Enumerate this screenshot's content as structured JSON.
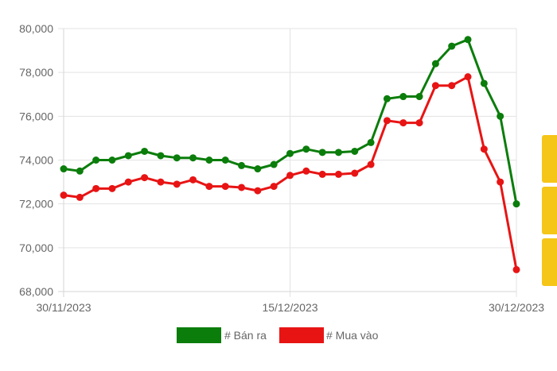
{
  "chart_data": {
    "type": "line",
    "x_tick_labels": [
      "30/11/2023",
      "15/12/2023",
      "30/12/2023"
    ],
    "y_tick_labels": [
      "68,000",
      "70,000",
      "72,000",
      "74,000",
      "76,000",
      "78,000",
      "80,000"
    ],
    "ylim": [
      68000,
      80000
    ],
    "grid": true,
    "legend_position": "bottom",
    "series": [
      {
        "name": "# Bán ra",
        "color": "#0b7d0b",
        "values": [
          73600,
          73500,
          74000,
          74000,
          74200,
          74400,
          74200,
          74100,
          74100,
          74000,
          74000,
          73750,
          73600,
          73800,
          74300,
          74500,
          74350,
          74350,
          74400,
          74800,
          76800,
          76900,
          76900,
          78400,
          79200,
          79500,
          77500,
          76000,
          72000
        ]
      },
      {
        "name": "# Mua vào",
        "color": "#e81414",
        "values": [
          72400,
          72300,
          72700,
          72700,
          73000,
          73200,
          73000,
          72900,
          73100,
          72800,
          72800,
          72750,
          72600,
          72800,
          73300,
          73500,
          73350,
          73350,
          73400,
          73800,
          75800,
          75700,
          75700,
          77400,
          77400,
          77800,
          74500,
          73000,
          69000
        ]
      }
    ]
  },
  "side_tabs": {
    "color": "#f5c518"
  }
}
